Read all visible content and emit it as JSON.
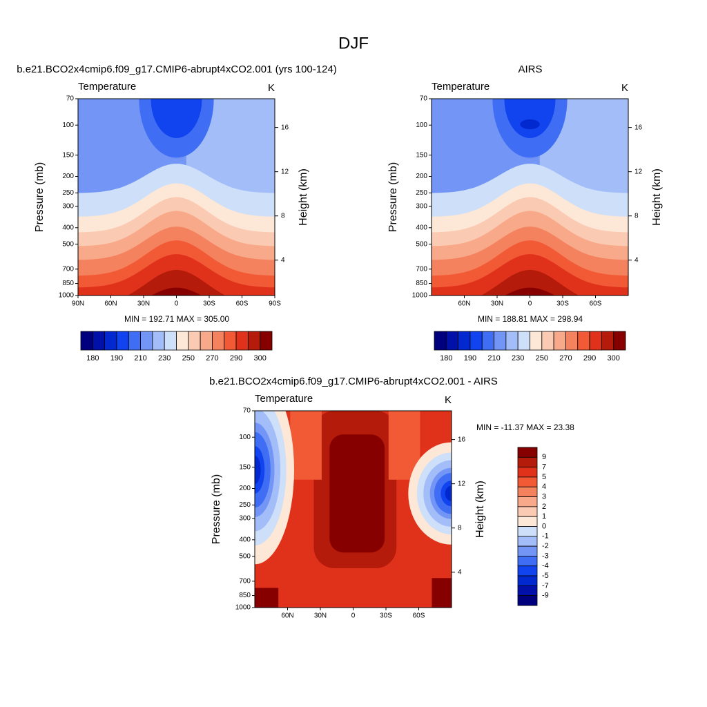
{
  "title": "DJF",
  "panels": [
    {
      "title": "b.e21.BCO2x4cmip6.f09_g17.CMIP6-abrupt4xCO2.001 (yrs 100-124)",
      "left_label": "Temperature",
      "right_label": "K",
      "y_label": "Pressure (mb)",
      "y2_label": "Height (km)",
      "ylim": [
        1000,
        70
      ],
      "ylog": true,
      "yticks": [
        70,
        100,
        150,
        200,
        250,
        300,
        400,
        500,
        700,
        850,
        1000
      ],
      "y2lim": [
        0.8,
        18.6
      ],
      "y2ticks": [
        4,
        8,
        12,
        16
      ],
      "xlim": [
        90,
        -90
      ],
      "xticks": [
        {
          "value": 90,
          "label": "90N"
        },
        {
          "value": 60,
          "label": "60N"
        },
        {
          "value": 30,
          "label": "30N"
        },
        0,
        {
          "value": -30,
          "label": "30S"
        },
        {
          "value": -60,
          "label": "60S"
        },
        {
          "value": -90,
          "label": "90S"
        }
      ],
      "stats": "MIN = 192.71  MAX = 305.00",
      "colorbar_labels": [
        180,
        190,
        210,
        230,
        250,
        270,
        290,
        300
      ]
    },
    {
      "title": "AIRS",
      "left_label": "Temperature",
      "right_label": "K",
      "y_label": "Pressure (mb)",
      "y2_label": "Height (km)",
      "ylim": [
        1000,
        70
      ],
      "ylog": true,
      "yticks": [
        70,
        100,
        150,
        200,
        250,
        300,
        400,
        500,
        700,
        850,
        1000
      ],
      "y2lim": [
        0.8,
        18.6
      ],
      "y2ticks": [
        4,
        8,
        12,
        16
      ],
      "xlim": [
        90,
        -90
      ],
      "xticks": [
        {
          "value": 60,
          "label": "60N"
        },
        {
          "value": 30,
          "label": "30N"
        },
        0,
        {
          "value": -30,
          "label": "30S"
        },
        {
          "value": -60,
          "label": "60S"
        }
      ],
      "stats": "MIN = 188.81  MAX = 298.94",
      "colorbar_labels": [
        180,
        190,
        210,
        230,
        250,
        270,
        290,
        300
      ]
    },
    {
      "title": "b.e21.BCO2x4cmip6.f09_g17.CMIP6-abrupt4xCO2.001 - AIRS",
      "left_label": "Temperature",
      "right_label": "K",
      "y_label": "Pressure (mb)",
      "y2_label": "Height (km)",
      "ylim": [
        1000,
        70
      ],
      "ylog": true,
      "yticks": [
        70,
        100,
        150,
        200,
        250,
        300,
        400,
        500,
        700,
        850,
        1000
      ],
      "y2lim": [
        0.8,
        18.6
      ],
      "y2ticks": [
        4,
        8,
        12,
        16
      ],
      "xlim": [
        90,
        -90
      ],
      "xticks": [
        {
          "value": 60,
          "label": "60N"
        },
        {
          "value": 30,
          "label": "30N"
        },
        0,
        {
          "value": -30,
          "label": "30S"
        },
        {
          "value": -60,
          "label": "60S"
        }
      ],
      "stats": "MIN = -11.37  MAX =  23.38",
      "colorbar_labels": [
        9,
        7,
        5,
        4,
        3,
        2,
        1,
        0,
        -1,
        -2,
        -3,
        -4,
        -5,
        -7,
        -9
      ]
    }
  ],
  "colorbar_colors": [
    "#00007f",
    "#0010a8",
    "#0228d0",
    "#1144ee",
    "#3f6ef5",
    "#7396f6",
    "#a3bdf9",
    "#cddff9",
    "#fde7d6",
    "#fbcab2",
    "#f8a98a",
    "#f5825f",
    "#f15a35",
    "#e0321a",
    "#b41b0b",
    "#870000"
  ]
}
